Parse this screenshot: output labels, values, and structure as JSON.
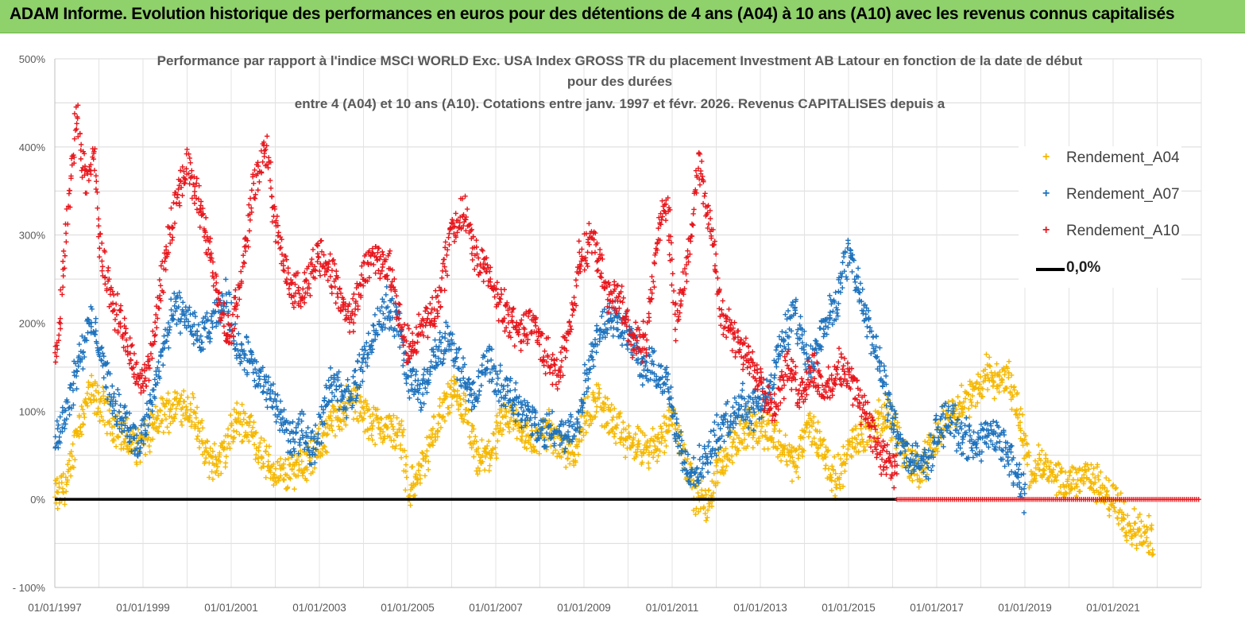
{
  "banner": {
    "title": "ADAM Informe. Evolution historique des performances en euros pour des détentions de 4 ans (A04) à 10 ans (A10) avec les revenus connus capitalisés"
  },
  "chart_data": {
    "type": "scatter",
    "title_lines": [
      "Performance par rapport à l'indice MSCI WORLD Exc. USA Index GROSS TR  du placement Investment AB Latour en fonction de la date de début",
      "pour des durées",
      "entre 4 (A04) et 10 ans (A10). Cotations entre janv. 1997 et févr. 2026. Revenus CAPITALISES depuis a"
    ],
    "x_start_year": 1997,
    "x_end_year": 2023,
    "x_tick_labels": [
      "01/01/1997",
      "01/01/1999",
      "01/01/2001",
      "01/01/2003",
      "01/01/2005",
      "01/01/2007",
      "01/01/2009",
      "01/01/2011",
      "01/01/2013",
      "01/01/2015",
      "01/01/2017",
      "01/01/2019",
      "01/01/2021"
    ],
    "x_tick_years": [
      1997,
      1999,
      2001,
      2003,
      2005,
      2007,
      2009,
      2011,
      2013,
      2015,
      2017,
      2019,
      2021
    ],
    "y_tick_labels": [
      "500%",
      "400%",
      "300%",
      "200%",
      "100%",
      "0%",
      "- 100%"
    ],
    "y_tick_values": [
      500,
      400,
      300,
      200,
      100,
      0,
      -100
    ],
    "ylim": [
      -100,
      500
    ],
    "series": [
      {
        "name": "Rendement_A04",
        "color": "#f5b800",
        "x": [
          1997.0,
          1997.3,
          1997.5,
          1997.8,
          1998.0,
          1998.3,
          1998.6,
          1998.9,
          1999.1,
          1999.4,
          1999.7,
          1999.9,
          2000.2,
          2000.4,
          2000.7,
          2000.9,
          2001.1,
          2001.4,
          2001.6,
          2001.9,
          2002.2,
          2002.5,
          2002.8,
          2003.0,
          2003.2,
          2003.5,
          2003.8,
          2004.0,
          2004.3,
          2004.6,
          2004.9,
          2005.0,
          2005.2,
          2005.5,
          2005.7,
          2006.0,
          2006.3,
          2006.6,
          2006.9,
          2007.1,
          2007.4,
          2007.7,
          2007.9,
          2008.2,
          2008.5,
          2008.8,
          2009.0,
          2009.3,
          2009.6,
          2009.9,
          2010.2,
          2010.5,
          2010.8,
          2011.0,
          2011.2,
          2011.5,
          2011.8,
          2012.0,
          2012.3,
          2012.6,
          2012.9,
          2013.2,
          2013.5,
          2013.8,
          2014.1,
          2014.4,
          2014.7,
          2015.0,
          2015.3,
          2015.6,
          2015.9,
          2016.2,
          2016.5,
          2016.8,
          2017.0,
          2017.3,
          2017.6,
          2017.9,
          2018.1,
          2018.4,
          2018.6,
          2018.9,
          2019.1,
          2019.4,
          2019.7,
          2020.0,
          2020.3,
          2020.6,
          2020.9,
          2021.1,
          2021.4,
          2021.7,
          2021.9
        ],
        "y": [
          0,
          20,
          80,
          120,
          110,
          90,
          70,
          60,
          70,
          95,
          105,
          110,
          95,
          50,
          40,
          60,
          90,
          85,
          60,
          35,
          25,
          40,
          45,
          60,
          80,
          100,
          115,
          95,
          85,
          80,
          70,
          10,
          20,
          60,
          90,
          120,
          100,
          40,
          55,
          80,
          95,
          70,
          65,
          80,
          60,
          55,
          90,
          115,
          90,
          70,
          60,
          55,
          75,
          95,
          65,
          10,
          -10,
          30,
          60,
          75,
          85,
          80,
          60,
          40,
          85,
          60,
          20,
          55,
          75,
          85,
          100,
          60,
          30,
          50,
          70,
          100,
          110,
          120,
          145,
          130,
          140,
          90,
          35,
          40,
          20,
          15,
          30,
          20,
          0,
          -5,
          -30,
          -40,
          -45
        ]
      },
      {
        "name": "Rendement_A07",
        "color": "#1e73be",
        "x": [
          1997.0,
          1997.2,
          1997.5,
          1997.8,
          1998.0,
          1998.3,
          1998.6,
          1998.9,
          1999.1,
          1999.4,
          1999.7,
          2000.0,
          2000.3,
          2000.6,
          2000.9,
          2001.1,
          2001.4,
          2001.7,
          2002.0,
          2002.3,
          2002.6,
          2002.9,
          2003.1,
          2003.3,
          2003.6,
          2003.9,
          2004.2,
          2004.5,
          2004.8,
          2005.0,
          2005.3,
          2005.6,
          2005.9,
          2006.2,
          2006.5,
          2006.8,
          2007.1,
          2007.4,
          2007.7,
          2008.0,
          2008.3,
          2008.6,
          2008.9,
          2009.1,
          2009.4,
          2009.7,
          2010.0,
          2010.3,
          2010.6,
          2010.9,
          2011.1,
          2011.4,
          2011.7,
          2012.0,
          2012.3,
          2012.6,
          2012.9,
          2013.2,
          2013.5,
          2013.8,
          2014.1,
          2014.4,
          2014.7,
          2015.0,
          2015.3,
          2015.6,
          2015.9,
          2016.2,
          2016.5,
          2016.8,
          2017.0,
          2017.3,
          2017.6,
          2017.9,
          2018.2,
          2018.5,
          2018.8,
          2019.0
        ],
        "y": [
          70,
          90,
          150,
          200,
          180,
          110,
          90,
          60,
          90,
          160,
          215,
          210,
          180,
          200,
          230,
          175,
          160,
          130,
          110,
          70,
          75,
          60,
          100,
          140,
          110,
          140,
          185,
          220,
          200,
          140,
          120,
          160,
          185,
          150,
          110,
          160,
          130,
          110,
          100,
          75,
          80,
          70,
          90,
          150,
          200,
          210,
          190,
          150,
          150,
          130,
          70,
          30,
          40,
          70,
          90,
          110,
          100,
          120,
          180,
          210,
          150,
          190,
          220,
          280,
          230,
          170,
          110,
          60,
          40,
          40,
          80,
          90,
          70,
          60,
          80,
          60,
          30,
          5
        ]
      },
      {
        "name": "Rendement_A10",
        "color": "#e8171d",
        "x": [
          1997.0,
          1997.1,
          1997.3,
          1997.5,
          1997.7,
          1997.9,
          1998.0,
          1998.2,
          1998.5,
          1998.8,
          1999.0,
          1999.2,
          1999.5,
          1999.8,
          2000.0,
          2000.3,
          2000.6,
          2000.8,
          2001.0,
          2001.2,
          2001.5,
          2001.8,
          2002.0,
          2002.3,
          2002.6,
          2002.9,
          2003.1,
          2003.4,
          2003.7,
          2004.0,
          2004.3,
          2004.6,
          2004.9,
          2005.1,
          2005.4,
          2005.7,
          2006.0,
          2006.3,
          2006.6,
          2006.9,
          2007.2,
          2007.5,
          2007.8,
          2008.1,
          2008.4,
          2008.7,
          2008.9,
          2009.2,
          2009.5,
          2009.8,
          2010.1,
          2010.4,
          2010.7,
          2010.9,
          2011.1,
          2011.3,
          2011.6,
          2011.9,
          2012.1,
          2012.4,
          2012.7,
          2013.0,
          2013.3,
          2013.6,
          2013.9,
          2014.2,
          2014.5,
          2014.8,
          2015.1,
          2015.4,
          2015.7,
          2015.9,
          2016.1
        ],
        "y": [
          160,
          190,
          330,
          440,
          360,
          390,
          300,
          240,
          200,
          150,
          130,
          170,
          270,
          350,
          380,
          330,
          260,
          200,
          190,
          240,
          350,
          400,
          310,
          250,
          230,
          270,
          280,
          240,
          200,
          260,
          280,
          260,
          180,
          170,
          200,
          220,
          310,
          320,
          270,
          250,
          210,
          190,
          200,
          170,
          140,
          200,
          270,
          300,
          240,
          230,
          180,
          180,
          310,
          330,
          200,
          260,
          380,
          300,
          220,
          180,
          160,
          140,
          100,
          150,
          120,
          150,
          120,
          150,
          130,
          100,
          50,
          40,
          30
        ]
      },
      {
        "name": "0,0%",
        "color": "#000000",
        "x": [
          1997.0,
          2016.1
        ],
        "y": [
          0,
          0
        ]
      }
    ],
    "zero_red_from_year": 2016.1,
    "legend": [
      {
        "label": "Rendement_A04",
        "marker": "+",
        "color": "#f5b800"
      },
      {
        "label": "Rendement_A07",
        "marker": "+",
        "color": "#1e73be"
      },
      {
        "label": "Rendement_A10",
        "marker": "+",
        "color": "#e8171d"
      },
      {
        "label": "0,0%",
        "marker": "line",
        "color": "#000000"
      }
    ]
  }
}
